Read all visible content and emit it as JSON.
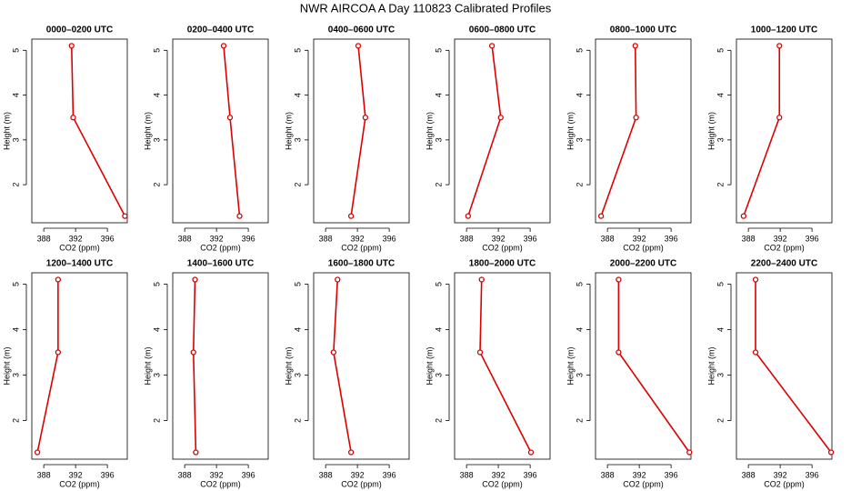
{
  "title": "NWR AIRCOA A  Day 110823  Calibrated Profiles",
  "chart_data": [
    {
      "type": "line",
      "title": "0000–0200 UTC",
      "x_label": "CO2 (ppm)",
      "y_label": "Height (m)",
      "color": "#dd0000",
      "x": [
        391.5,
        391.7,
        398.2
      ],
      "values": [
        5.1,
        3.5,
        1.3
      ],
      "xlim": [
        386.5,
        398.5
      ],
      "xticks": [
        388,
        392,
        396
      ],
      "ylim": [
        1.15,
        5.25
      ],
      "yticks": [
        2,
        3,
        4,
        5
      ]
    },
    {
      "type": "line",
      "title": "0200–0400 UTC",
      "x_label": "CO2 (ppm)",
      "y_label": "Height (m)",
      "color": "#dd0000",
      "x": [
        392.9,
        393.7,
        394.9
      ],
      "values": [
        5.1,
        3.5,
        1.3
      ],
      "xlim": [
        386.5,
        398.5
      ],
      "xticks": [
        388,
        392,
        396
      ],
      "ylim": [
        1.15,
        5.25
      ],
      "yticks": [
        2,
        3,
        4,
        5
      ]
    },
    {
      "type": "line",
      "title": "0400–0600 UTC",
      "x_label": "CO2 (ppm)",
      "y_label": "Height (m)",
      "color": "#dd0000",
      "x": [
        392.1,
        393.0,
        391.2
      ],
      "values": [
        5.1,
        3.5,
        1.3
      ],
      "xlim": [
        386.5,
        398.5
      ],
      "xticks": [
        388,
        392,
        396
      ],
      "ylim": [
        1.15,
        5.25
      ],
      "yticks": [
        2,
        3,
        4,
        5
      ]
    },
    {
      "type": "line",
      "title": "0600–0800 UTC",
      "x_label": "CO2 (ppm)",
      "y_label": "Height (m)",
      "color": "#dd0000",
      "x": [
        391.2,
        392.3,
        388.2
      ],
      "values": [
        5.1,
        3.5,
        1.3
      ],
      "xlim": [
        386.5,
        398.5
      ],
      "xticks": [
        388,
        392,
        396
      ],
      "ylim": [
        1.15,
        5.25
      ],
      "yticks": [
        2,
        3,
        4,
        5
      ]
    },
    {
      "type": "line",
      "title": "0800–1000 UTC",
      "x_label": "CO2 (ppm)",
      "y_label": "Height (m)",
      "color": "#dd0000",
      "x": [
        391.5,
        391.6,
        387.2
      ],
      "values": [
        5.1,
        3.5,
        1.3
      ],
      "xlim": [
        386.5,
        398.5
      ],
      "xticks": [
        388,
        392,
        396
      ],
      "ylim": [
        1.15,
        5.25
      ],
      "yticks": [
        2,
        3,
        4,
        5
      ]
    },
    {
      "type": "line",
      "title": "1000–1200 UTC",
      "x_label": "CO2 (ppm)",
      "y_label": "Height (m)",
      "color": "#dd0000",
      "x": [
        391.9,
        391.9,
        387.4
      ],
      "values": [
        5.1,
        3.5,
        1.3
      ],
      "xlim": [
        386.5,
        398.5
      ],
      "xticks": [
        388,
        392,
        396
      ],
      "ylim": [
        1.15,
        5.25
      ],
      "yticks": [
        2,
        3,
        4,
        5
      ]
    },
    {
      "type": "line",
      "title": "1200–1400 UTC",
      "x_label": "CO2 (ppm)",
      "y_label": "Height (m)",
      "color": "#dd0000",
      "x": [
        389.8,
        389.8,
        387.2
      ],
      "values": [
        5.1,
        3.5,
        1.3
      ],
      "xlim": [
        386.5,
        398.5
      ],
      "xticks": [
        388,
        392,
        396
      ],
      "ylim": [
        1.15,
        5.25
      ],
      "yticks": [
        2,
        3,
        4,
        5
      ]
    },
    {
      "type": "line",
      "title": "1400–1600 UTC",
      "x_label": "CO2 (ppm)",
      "y_label": "Height (m)",
      "color": "#dd0000",
      "x": [
        389.3,
        389.1,
        389.4
      ],
      "values": [
        5.1,
        3.5,
        1.3
      ],
      "xlim": [
        386.5,
        398.5
      ],
      "xticks": [
        388,
        392,
        396
      ],
      "ylim": [
        1.15,
        5.25
      ],
      "yticks": [
        2,
        3,
        4,
        5
      ]
    },
    {
      "type": "line",
      "title": "1600–1800 UTC",
      "x_label": "CO2 (ppm)",
      "y_label": "Height (m)",
      "color": "#dd0000",
      "x": [
        389.5,
        389.0,
        391.2
      ],
      "values": [
        5.1,
        3.5,
        1.3
      ],
      "xlim": [
        386.5,
        398.5
      ],
      "xticks": [
        388,
        392,
        396
      ],
      "ylim": [
        1.15,
        5.25
      ],
      "yticks": [
        2,
        3,
        4,
        5
      ]
    },
    {
      "type": "line",
      "title": "1800–2000 UTC",
      "x_label": "CO2 (ppm)",
      "y_label": "Height (m)",
      "color": "#dd0000",
      "x": [
        389.9,
        389.7,
        396.1
      ],
      "values": [
        5.1,
        3.5,
        1.3
      ],
      "xlim": [
        386.5,
        398.5
      ],
      "xticks": [
        388,
        392,
        396
      ],
      "ylim": [
        1.15,
        5.25
      ],
      "yticks": [
        2,
        3,
        4,
        5
      ]
    },
    {
      "type": "line",
      "title": "2000–2200 UTC",
      "x_label": "CO2 (ppm)",
      "y_label": "Height (m)",
      "color": "#dd0000",
      "x": [
        389.4,
        389.4,
        398.3
      ],
      "values": [
        5.1,
        3.5,
        1.3
      ],
      "xlim": [
        386.5,
        398.5
      ],
      "xticks": [
        388,
        392,
        396
      ],
      "ylim": [
        1.15,
        5.25
      ],
      "yticks": [
        2,
        3,
        4,
        5
      ]
    },
    {
      "type": "line",
      "title": "2200–2400 UTC",
      "x_label": "CO2 (ppm)",
      "y_label": "Height (m)",
      "color": "#dd0000",
      "x": [
        388.9,
        388.9,
        398.4
      ],
      "values": [
        5.1,
        3.5,
        1.3
      ],
      "xlim": [
        386.5,
        398.5
      ],
      "xticks": [
        388,
        392,
        396
      ],
      "ylim": [
        1.15,
        5.25
      ],
      "yticks": [
        2,
        3,
        4,
        5
      ]
    }
  ]
}
